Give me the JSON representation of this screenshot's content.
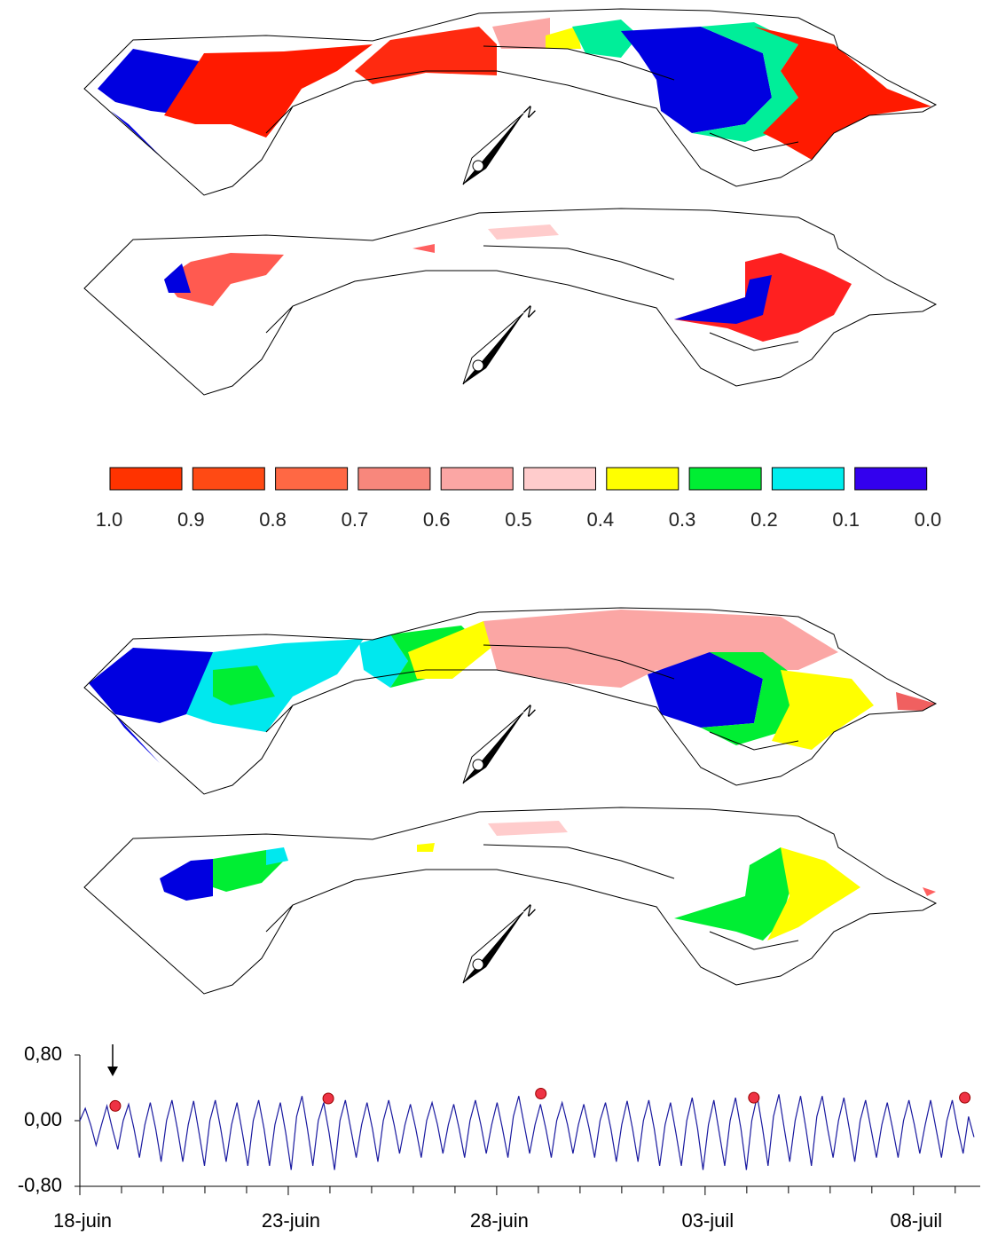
{
  "maps": [
    {
      "north": "N"
    },
    {
      "north": "N"
    },
    {
      "north": "N"
    },
    {
      "north": "N"
    }
  ],
  "legend": {
    "colors": [
      "#ff3300",
      "#ff4a14",
      "#ff6844",
      "#f8877c",
      "#fba6a4",
      "#ffcccc",
      "#ffff00",
      "#00ee33",
      "#00eeee",
      "#3300ee"
    ],
    "labels": [
      "1.0",
      "0.9",
      "0.8",
      "0.7",
      "0.6",
      "0.5",
      "0.4",
      "0.3",
      "0.2",
      "0.1",
      "0.0"
    ]
  },
  "chart_data": {
    "type": "line",
    "x": [
      0,
      0.13,
      0.26,
      0.39,
      0.52,
      0.65,
      0.78,
      0.91,
      1.04,
      1.17,
      1.3,
      1.43,
      1.56,
      1.69,
      1.82,
      1.95,
      2.08,
      2.21,
      2.34,
      2.47,
      2.6,
      2.73,
      2.86,
      2.99,
      3.12,
      3.25,
      3.38,
      3.51,
      3.64,
      3.77,
      3.9,
      4.03,
      4.16,
      4.29,
      4.42,
      4.55,
      4.68,
      4.81,
      4.94,
      5.07,
      5.2,
      5.33,
      5.46,
      5.59,
      5.72,
      5.85,
      5.98,
      6.11,
      6.24,
      6.37,
      6.5,
      6.63,
      6.76,
      6.89,
      7.02,
      7.15,
      7.28,
      7.41,
      7.54,
      7.67,
      7.8,
      7.93,
      8.06,
      8.19,
      8.32,
      8.45,
      8.58,
      8.71,
      8.84,
      8.97,
      9.1,
      9.23,
      9.36,
      9.49,
      9.62,
      9.75,
      9.88,
      10.01,
      10.14,
      10.27,
      10.4,
      10.53,
      10.66,
      10.79,
      10.92,
      11.05,
      11.18,
      11.31,
      11.44,
      11.57,
      11.7,
      11.83,
      11.96,
      12.09,
      12.22,
      12.35,
      12.48,
      12.61,
      12.74,
      12.87,
      13,
      13.13,
      13.26,
      13.39,
      13.52,
      13.65,
      13.78,
      13.91,
      14.04,
      14.17,
      14.3,
      14.43,
      14.56,
      14.69,
      14.82,
      14.95,
      15.08,
      15.21,
      15.34,
      15.47,
      15.6,
      15.73,
      15.86,
      15.99,
      16.12,
      16.25,
      16.38,
      16.51,
      16.64,
      16.77,
      16.9,
      17.03,
      17.16,
      17.29,
      17.42,
      17.55,
      17.68,
      17.81,
      17.94,
      18.07,
      18.2,
      18.33,
      18.46,
      18.59,
      18.72,
      18.85,
      18.98,
      19.11,
      19.24,
      19.37,
      19.5,
      19.63,
      19.76,
      19.89,
      20.02,
      20.15,
      20.28,
      20.41,
      20.54,
      20.67,
      20.8,
      20.93,
      21.06,
      21.19,
      21.32,
      21.45
    ],
    "series": [
      {
        "color": "#1a1aa0",
        "values": [
          0.0,
          0.15,
          -0.05,
          -0.3,
          -0.05,
          0.18,
          -0.1,
          -0.35,
          0.0,
          0.2,
          -0.1,
          -0.45,
          -0.05,
          0.22,
          -0.1,
          -0.5,
          0.0,
          0.25,
          -0.1,
          -0.5,
          -0.05,
          0.24,
          -0.15,
          -0.55,
          0.0,
          0.25,
          -0.1,
          -0.5,
          -0.05,
          0.22,
          -0.15,
          -0.55,
          0.0,
          0.25,
          -0.1,
          -0.55,
          -0.05,
          0.22,
          -0.15,
          -0.6,
          0.05,
          0.3,
          -0.1,
          -0.55,
          0.0,
          0.22,
          -0.15,
          -0.6,
          0.0,
          0.25,
          -0.1,
          -0.45,
          -0.05,
          0.22,
          -0.1,
          -0.5,
          0.0,
          0.25,
          -0.05,
          -0.4,
          -0.05,
          0.2,
          -0.1,
          -0.45,
          0.0,
          0.22,
          -0.05,
          -0.4,
          -0.05,
          0.2,
          -0.1,
          -0.45,
          0.0,
          0.25,
          -0.05,
          -0.4,
          -0.05,
          0.22,
          -0.1,
          -0.45,
          0.05,
          0.3,
          -0.05,
          -0.4,
          -0.05,
          0.2,
          -0.1,
          -0.45,
          0.0,
          0.22,
          -0.05,
          -0.4,
          -0.05,
          0.2,
          -0.1,
          -0.45,
          0.0,
          0.22,
          -0.1,
          -0.5,
          -0.05,
          0.24,
          -0.1,
          -0.5,
          0.0,
          0.25,
          -0.1,
          -0.55,
          -0.05,
          0.22,
          -0.15,
          -0.55,
          0.0,
          0.28,
          -0.1,
          -0.6,
          -0.05,
          0.25,
          -0.15,
          -0.55,
          0.0,
          0.28,
          -0.1,
          -0.6,
          0.0,
          0.3,
          -0.1,
          -0.55,
          0.05,
          0.32,
          -0.1,
          -0.5,
          0.0,
          0.3,
          -0.1,
          -0.55,
          0.05,
          0.3,
          -0.1,
          -0.45,
          0.0,
          0.28,
          -0.1,
          -0.5,
          0.0,
          0.25,
          -0.1,
          -0.45,
          -0.05,
          0.22,
          -0.1,
          -0.45,
          0.0,
          0.25,
          -0.05,
          -0.4,
          -0.05,
          0.25,
          -0.1,
          -0.45,
          0.0,
          0.25,
          -0.1,
          -0.4,
          0.05,
          -0.2
        ]
      }
    ],
    "markers": {
      "color": "#ee3344",
      "x": [
        0.85,
        5.96,
        11.06,
        16.17,
        21.23
      ],
      "values": [
        0.18,
        0.27,
        0.33,
        0.28,
        0.28
      ]
    },
    "xlim": [
      0,
      21.6
    ],
    "ylim": [
      -0.8,
      0.8
    ],
    "xticks": [
      {
        "value": 0,
        "label": "18-juin"
      },
      {
        "value": 5,
        "label": "23-juin"
      },
      {
        "value": 10,
        "label": "28-juin"
      },
      {
        "value": 15,
        "label": "03-juil"
      },
      {
        "value": 20,
        "label": "08-juil"
      }
    ],
    "xminorticks": [
      1,
      2,
      3,
      4,
      6,
      7,
      8,
      9,
      11,
      12,
      13,
      14,
      16,
      17,
      18,
      19,
      21
    ],
    "yticks": [
      {
        "value": 0.8,
        "label": "0,80"
      },
      {
        "value": 0,
        "label": "0,00"
      },
      {
        "value": -0.8,
        "label": "-0,80"
      }
    ]
  }
}
